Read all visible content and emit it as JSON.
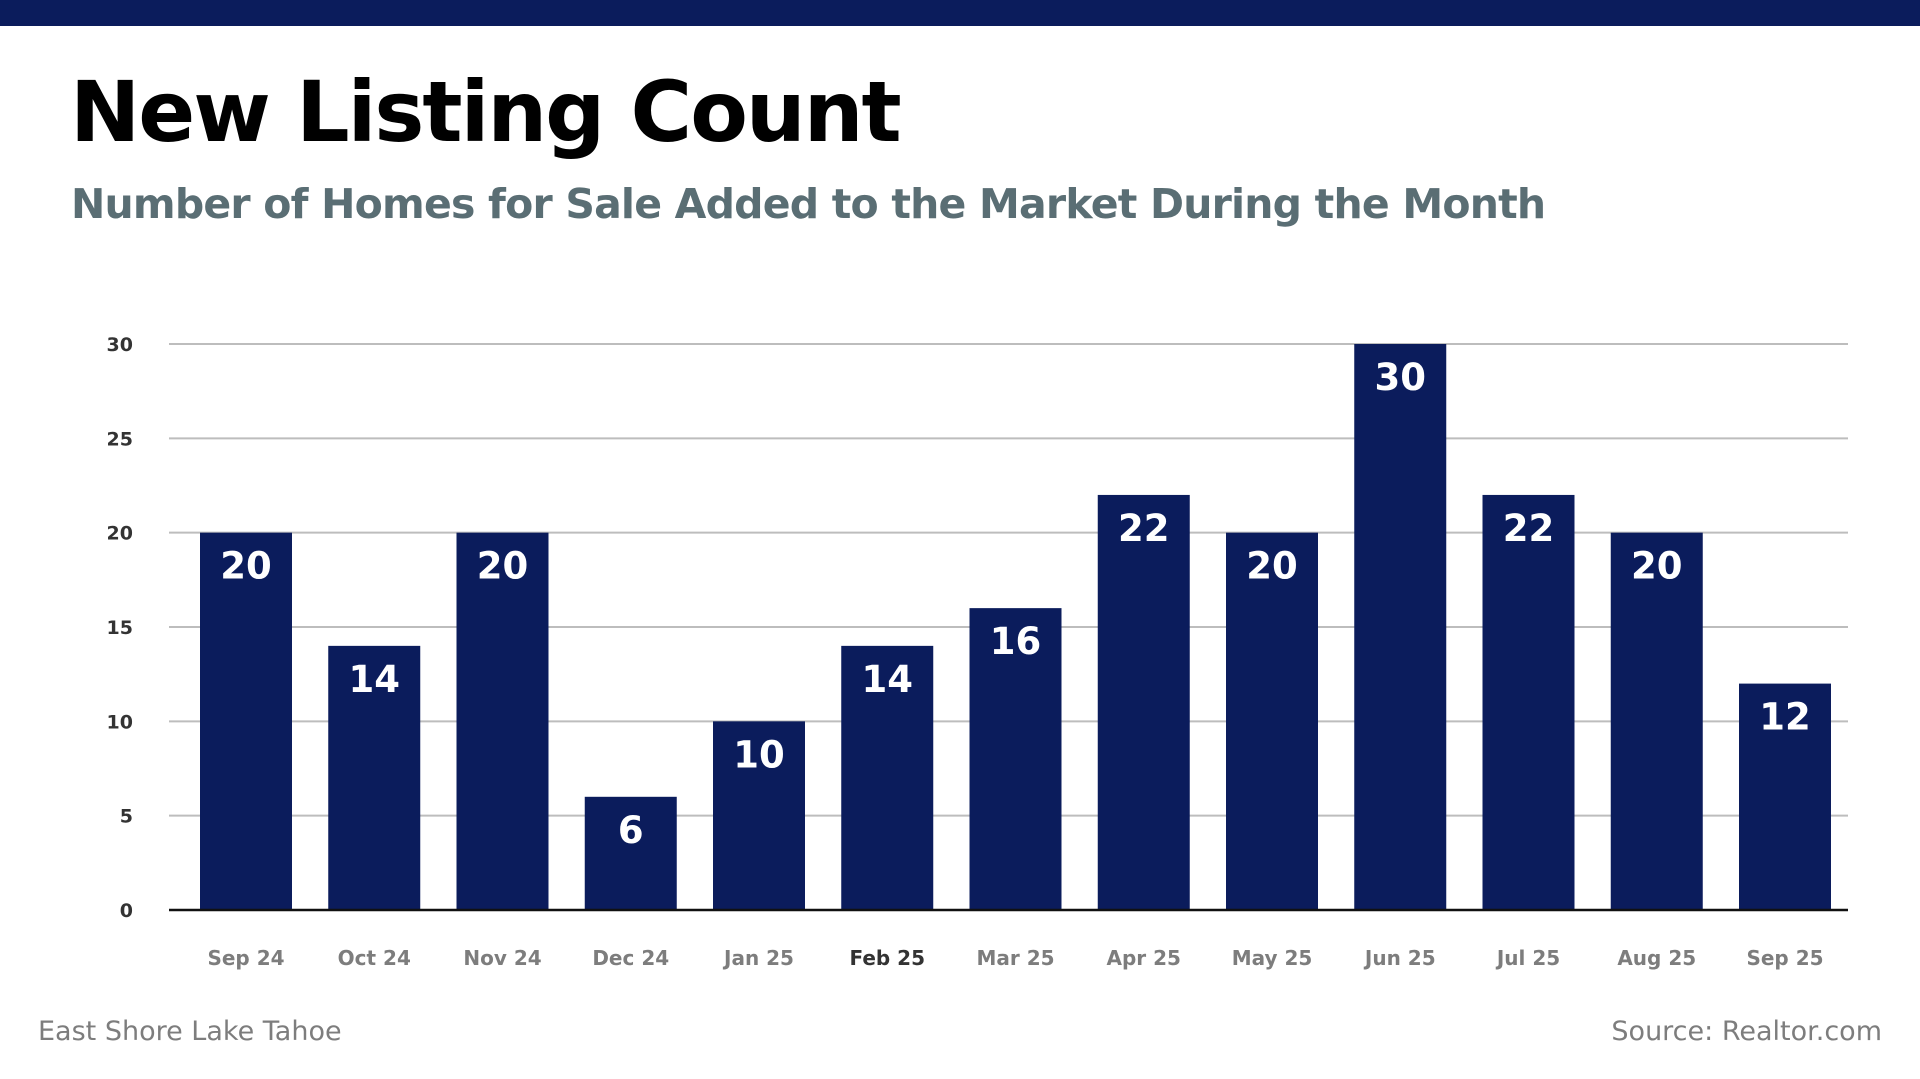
{
  "header": {
    "title": "New Listing Count",
    "subtitle": "Number of Homes for Sale Added to the Market During the Month"
  },
  "footer": {
    "left": "East Shore Lake Tahoe",
    "right": "Source: Realtor.com"
  },
  "colors": {
    "top_bar": "#0b1c5c",
    "bar": "#0b1c5c",
    "bar_label": "#ffffff",
    "gridline": "#bdbdbd",
    "axis_line": "#111111",
    "y_tick_label": "#333333",
    "x_tick_label": "#7d7d7d",
    "subtitle": "#5a6e74"
  },
  "chart_data": {
    "type": "bar",
    "title": "New Listing Count",
    "subtitle": "Number of Homes for Sale Added to the Market During the Month",
    "xlabel": "",
    "ylabel": "",
    "categories": [
      "Sep 24",
      "Oct 24",
      "Nov 24",
      "Dec 24",
      "Jan 25",
      "Feb 25",
      "Mar 25",
      "Apr 25",
      "May 25",
      "Jun 25",
      "Jul 25",
      "Aug 25",
      "Sep 25"
    ],
    "values": [
      20,
      14,
      20,
      6,
      10,
      14,
      16,
      22,
      20,
      30,
      22,
      20,
      12
    ],
    "data_labels": [
      "20",
      "14",
      "20",
      "6",
      "10",
      "14",
      "16",
      "22",
      "20",
      "30",
      "22",
      "20",
      "12"
    ],
    "ylim": [
      0,
      30
    ],
    "yticks": [
      0,
      5,
      10,
      15,
      20,
      25,
      30
    ],
    "grid": true,
    "legend": "none"
  }
}
